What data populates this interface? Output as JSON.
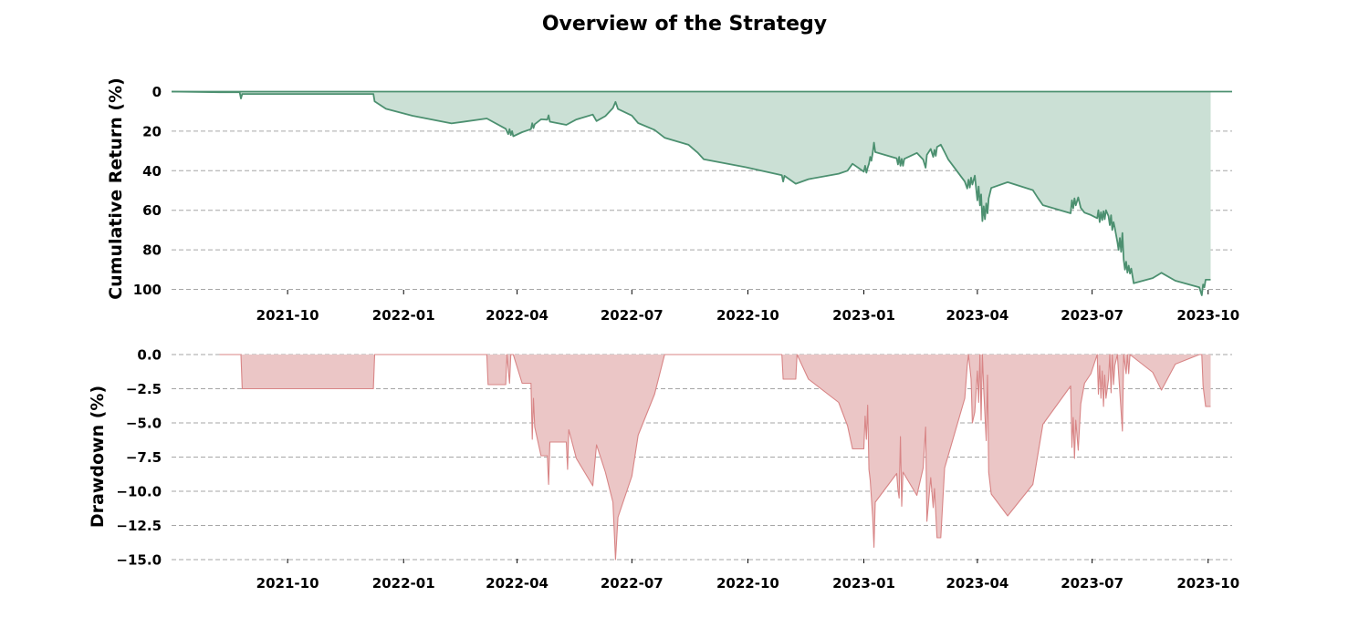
{
  "chart_data": {
    "title": "Overview of the Strategy",
    "x_range": [
      "2021-07-01",
      "2023-10-20"
    ],
    "x_ticks": [
      "2021-10",
      "2022-01",
      "2022-04",
      "2022-07",
      "2022-10",
      "2023-01",
      "2023-04",
      "2023-07",
      "2023-10"
    ],
    "grid": "horizontal dashed",
    "panels": [
      {
        "type": "area",
        "ylabel": "Cumulative Return (%)",
        "ylim": [
          0,
          105
        ],
        "y_ticks": [
          0,
          20,
          40,
          60,
          80,
          100
        ],
        "line_color": "#4c9070",
        "fill_color": "#cbe0d5",
        "points": [
          [
            "2021-07-01",
            0
          ],
          [
            "2021-08-08",
            0.3
          ],
          [
            "2021-08-24",
            0.3
          ],
          [
            "2021-08-25",
            3.5
          ],
          [
            "2021-08-26",
            1.2
          ],
          [
            "2021-12-08",
            1.2
          ],
          [
            "2021-12-09",
            5
          ],
          [
            "2021-12-18",
            8.7
          ],
          [
            "2022-01-08",
            12.2
          ],
          [
            "2022-02-08",
            16.1
          ],
          [
            "2022-03-08",
            13.6
          ],
          [
            "2022-03-23",
            18.8
          ],
          [
            "2022-03-25",
            21.5
          ],
          [
            "2022-03-26",
            19
          ],
          [
            "2022-03-27",
            22
          ],
          [
            "2022-03-28",
            20
          ],
          [
            "2022-03-29",
            22.6
          ],
          [
            "2022-04-05",
            20.5
          ],
          [
            "2022-04-12",
            19
          ],
          [
            "2022-04-13",
            16
          ],
          [
            "2022-04-14",
            18.5
          ],
          [
            "2022-04-15",
            16.5
          ],
          [
            "2022-04-20",
            14
          ],
          [
            "2022-04-25",
            14.2
          ],
          [
            "2022-04-26",
            12
          ],
          [
            "2022-04-27",
            15.2
          ],
          [
            "2022-05-10",
            16.8
          ],
          [
            "2022-05-18",
            14.1
          ],
          [
            "2022-05-31",
            11.6
          ],
          [
            "2022-06-03",
            14.9
          ],
          [
            "2022-06-10",
            12.4
          ],
          [
            "2022-06-16",
            8.3
          ],
          [
            "2022-06-18",
            5.2
          ],
          [
            "2022-06-20",
            8.8
          ],
          [
            "2022-07-01",
            12.1
          ],
          [
            "2022-07-06",
            15.9
          ],
          [
            "2022-07-19",
            19.4
          ],
          [
            "2022-07-27",
            23.3
          ],
          [
            "2022-08-15",
            26.9
          ],
          [
            "2022-08-22",
            30.8
          ],
          [
            "2022-08-27",
            34.2
          ],
          [
            "2022-09-29",
            38.2
          ],
          [
            "2022-10-28",
            42.3
          ],
          [
            "2022-10-29",
            45.5
          ],
          [
            "2022-10-30",
            42.6
          ],
          [
            "2022-11-08",
            46.6
          ],
          [
            "2022-11-18",
            44.3
          ],
          [
            "2022-12-12",
            41.5
          ],
          [
            "2022-12-19",
            40
          ],
          [
            "2022-12-23",
            36.5
          ],
          [
            "2023-01-01",
            40.5
          ],
          [
            "2023-01-02",
            37.5
          ],
          [
            "2023-01-03",
            41
          ],
          [
            "2023-01-04",
            38.5
          ],
          [
            "2023-01-05",
            36.5
          ],
          [
            "2023-01-06",
            33
          ],
          [
            "2023-01-07",
            35
          ],
          [
            "2023-01-08",
            31
          ],
          [
            "2023-01-09",
            25.8
          ],
          [
            "2023-01-10",
            30.6
          ],
          [
            "2023-01-27",
            33.8
          ],
          [
            "2023-01-28",
            36.8
          ],
          [
            "2023-01-29",
            33
          ],
          [
            "2023-01-30",
            37.5
          ],
          [
            "2023-01-31",
            34
          ],
          [
            "2023-02-01",
            37.5
          ],
          [
            "2023-02-02",
            34
          ],
          [
            "2023-02-12",
            31
          ],
          [
            "2023-02-17",
            34.4
          ],
          [
            "2023-02-19",
            38.5
          ],
          [
            "2023-02-20",
            32
          ],
          [
            "2023-02-23",
            29
          ],
          [
            "2023-02-25",
            33
          ],
          [
            "2023-02-26",
            29.5
          ],
          [
            "2023-02-27",
            32.5
          ],
          [
            "2023-02-28",
            28
          ],
          [
            "2023-03-03",
            26.8
          ],
          [
            "2023-03-06",
            30.6
          ],
          [
            "2023-03-09",
            34.4
          ],
          [
            "2023-03-22",
            45.5
          ],
          [
            "2023-03-24",
            49
          ],
          [
            "2023-03-25",
            44.5
          ],
          [
            "2023-03-26",
            48.5
          ],
          [
            "2023-03-27",
            43.5
          ],
          [
            "2023-03-28",
            47
          ],
          [
            "2023-03-30",
            42.5
          ],
          [
            "2023-04-01",
            55
          ],
          [
            "2023-04-02",
            48
          ],
          [
            "2023-04-03",
            57.5
          ],
          [
            "2023-04-04",
            52
          ],
          [
            "2023-04-05",
            65.5
          ],
          [
            "2023-04-06",
            58
          ],
          [
            "2023-04-07",
            64.5
          ],
          [
            "2023-04-08",
            56.5
          ],
          [
            "2023-04-09",
            61.5
          ],
          [
            "2023-04-10",
            54
          ],
          [
            "2023-04-12",
            48.7
          ],
          [
            "2023-04-25",
            45.8
          ],
          [
            "2023-05-15",
            49.8
          ],
          [
            "2023-05-19",
            53.8
          ],
          [
            "2023-05-23",
            57.4
          ],
          [
            "2023-06-14",
            61.5
          ],
          [
            "2023-06-15",
            55
          ],
          [
            "2023-06-16",
            59
          ],
          [
            "2023-06-17",
            54
          ],
          [
            "2023-06-18",
            57.5
          ],
          [
            "2023-06-20",
            53.5
          ],
          [
            "2023-06-22",
            58.8
          ],
          [
            "2023-06-25",
            61.2
          ],
          [
            "2023-06-30",
            62.4
          ],
          [
            "2023-07-05",
            64
          ],
          [
            "2023-07-06",
            60
          ],
          [
            "2023-07-07",
            66
          ],
          [
            "2023-07-08",
            61
          ],
          [
            "2023-07-09",
            65
          ],
          [
            "2023-07-10",
            60.5
          ],
          [
            "2023-07-11",
            64.5
          ],
          [
            "2023-07-12",
            60
          ],
          [
            "2023-07-14",
            63
          ],
          [
            "2023-07-15",
            67.5
          ],
          [
            "2023-07-16",
            62.5
          ],
          [
            "2023-07-17",
            70
          ],
          [
            "2023-07-18",
            66
          ],
          [
            "2023-07-19",
            69
          ],
          [
            "2023-07-21",
            76
          ],
          [
            "2023-07-22",
            80
          ],
          [
            "2023-07-23",
            74
          ],
          [
            "2023-07-24",
            81
          ],
          [
            "2023-07-25",
            71.5
          ],
          [
            "2023-07-26",
            85
          ],
          [
            "2023-07-27",
            90
          ],
          [
            "2023-07-28",
            86
          ],
          [
            "2023-07-29",
            91.5
          ],
          [
            "2023-07-30",
            88
          ],
          [
            "2023-07-31",
            92
          ],
          [
            "2023-08-01",
            89.5
          ],
          [
            "2023-08-03",
            96.9
          ],
          [
            "2023-08-18",
            94.3
          ],
          [
            "2023-08-25",
            91.6
          ],
          [
            "2023-09-05",
            95.6
          ],
          [
            "2023-09-24",
            99
          ],
          [
            "2023-09-26",
            103
          ],
          [
            "2023-09-27",
            97.5
          ],
          [
            "2023-09-28",
            99
          ],
          [
            "2023-09-29",
            95.1
          ],
          [
            "2023-10-03",
            95.1
          ]
        ]
      },
      {
        "type": "area",
        "ylabel": "Drawdown (%)",
        "ylim": [
          -15.2,
          0.2
        ],
        "y_ticks": [
          0.0,
          -2.5,
          -5.0,
          -7.5,
          -10.0,
          -12.5,
          -15.0
        ],
        "y_tick_labels": [
          "0.0",
          "−2.5",
          "−5.0",
          "−7.5",
          "−10.0",
          "−12.5",
          "−15.0"
        ],
        "line_color": "#d88586",
        "fill_color": "#ebc6c6",
        "points": [
          [
            "2021-08-08",
            0
          ],
          [
            "2021-08-25",
            0
          ],
          [
            "2021-08-26",
            -2.5
          ],
          [
            "2021-12-08",
            -2.5
          ],
          [
            "2021-12-09",
            0
          ],
          [
            "2022-03-08",
            0
          ],
          [
            "2022-03-09",
            -2.2
          ],
          [
            "2022-03-23",
            -2.2
          ],
          [
            "2022-03-24",
            0
          ],
          [
            "2022-03-26",
            -2.1
          ],
          [
            "2022-03-27",
            0
          ],
          [
            "2022-03-29",
            0
          ],
          [
            "2022-04-05",
            -2.1
          ],
          [
            "2022-04-12",
            -2.1
          ],
          [
            "2022-04-13",
            -6.2
          ],
          [
            "2022-04-14",
            -3.2
          ],
          [
            "2022-04-15",
            -5.3
          ],
          [
            "2022-04-20",
            -7.4
          ],
          [
            "2022-04-25",
            -7.4
          ],
          [
            "2022-04-26",
            -9.5
          ],
          [
            "2022-04-27",
            -6.4
          ],
          [
            "2022-05-10",
            -6.4
          ],
          [
            "2022-05-11",
            -8.4
          ],
          [
            "2022-05-12",
            -5.5
          ],
          [
            "2022-05-18",
            -7.6
          ],
          [
            "2022-05-31",
            -9.6
          ],
          [
            "2022-06-03",
            -6.6
          ],
          [
            "2022-06-10",
            -8.6
          ],
          [
            "2022-06-16",
            -10.8
          ],
          [
            "2022-06-18",
            -15
          ],
          [
            "2022-06-20",
            -11.9
          ],
          [
            "2022-07-01",
            -8.9
          ],
          [
            "2022-07-06",
            -5.9
          ],
          [
            "2022-07-19",
            -2.9
          ],
          [
            "2022-07-27",
            0
          ],
          [
            "2022-10-28",
            0
          ],
          [
            "2022-10-29",
            -1.8
          ],
          [
            "2022-11-08",
            -1.8
          ],
          [
            "2022-11-09",
            0
          ],
          [
            "2022-11-18",
            -1.8
          ],
          [
            "2022-12-12",
            -3.5
          ],
          [
            "2022-12-19",
            -5.2
          ],
          [
            "2022-12-23",
            -6.9
          ],
          [
            "2023-01-01",
            -6.9
          ],
          [
            "2023-01-02",
            -4.5
          ],
          [
            "2023-01-03",
            -6.2
          ],
          [
            "2023-01-04",
            -3.7
          ],
          [
            "2023-01-05",
            -8.4
          ],
          [
            "2023-01-06",
            -9.2
          ],
          [
            "2023-01-08",
            -11.9
          ],
          [
            "2023-01-09",
            -14.1
          ],
          [
            "2023-01-10",
            -10.8
          ],
          [
            "2023-01-27",
            -8.7
          ],
          [
            "2023-01-28",
            -9.9
          ],
          [
            "2023-01-29",
            -10.5
          ],
          [
            "2023-01-30",
            -6
          ],
          [
            "2023-01-31",
            -11.1
          ],
          [
            "2023-02-01",
            -8.6
          ],
          [
            "2023-02-12",
            -10.3
          ],
          [
            "2023-02-17",
            -8.3
          ],
          [
            "2023-02-19",
            -5.3
          ],
          [
            "2023-02-20",
            -12.2
          ],
          [
            "2023-02-23",
            -9
          ],
          [
            "2023-02-25",
            -11.2
          ],
          [
            "2023-02-26",
            -9.8
          ],
          [
            "2023-02-28",
            -13.4
          ],
          [
            "2023-03-03",
            -13.4
          ],
          [
            "2023-03-06",
            -8.3
          ],
          [
            "2023-03-22",
            -3.2
          ],
          [
            "2023-03-24",
            -0.8
          ],
          [
            "2023-03-25",
            0
          ],
          [
            "2023-03-27",
            -1.8
          ],
          [
            "2023-03-28",
            -5
          ],
          [
            "2023-03-30",
            -4.2
          ],
          [
            "2023-04-01",
            -1.2
          ],
          [
            "2023-04-02",
            -3.5
          ],
          [
            "2023-04-03",
            0
          ],
          [
            "2023-04-04",
            -4.8
          ],
          [
            "2023-04-05",
            0
          ],
          [
            "2023-04-06",
            -2.5
          ],
          [
            "2023-04-08",
            -6.3
          ],
          [
            "2023-04-09",
            -1.5
          ],
          [
            "2023-04-10",
            -8.6
          ],
          [
            "2023-04-12",
            -10.2
          ],
          [
            "2023-04-25",
            -11.8
          ],
          [
            "2023-05-15",
            -9.5
          ],
          [
            "2023-05-19",
            -7.3
          ],
          [
            "2023-05-23",
            -5.1
          ],
          [
            "2023-06-14",
            -2.3
          ],
          [
            "2023-06-15",
            -6.8
          ],
          [
            "2023-06-16",
            -4.6
          ],
          [
            "2023-06-17",
            -7.6
          ],
          [
            "2023-06-18",
            -4.8
          ],
          [
            "2023-06-20",
            -7
          ],
          [
            "2023-06-22",
            -3.6
          ],
          [
            "2023-06-25",
            -2.1
          ],
          [
            "2023-06-30",
            -1.4
          ],
          [
            "2023-07-05",
            0
          ],
          [
            "2023-07-06",
            -2.9
          ],
          [
            "2023-07-07",
            -0.8
          ],
          [
            "2023-07-08",
            -3.2
          ],
          [
            "2023-07-09",
            -1.2
          ],
          [
            "2023-07-10",
            -3.8
          ],
          [
            "2023-07-11",
            -1.5
          ],
          [
            "2023-07-12",
            -3.2
          ],
          [
            "2023-07-14",
            -1.8
          ],
          [
            "2023-07-15",
            0
          ],
          [
            "2023-07-16",
            -2.8
          ],
          [
            "2023-07-17",
            0
          ],
          [
            "2023-07-18",
            -2.2
          ],
          [
            "2023-07-19",
            -0.8
          ],
          [
            "2023-07-21",
            0
          ],
          [
            "2023-07-25",
            -5.6
          ],
          [
            "2023-07-26",
            0
          ],
          [
            "2023-07-28",
            -1.4
          ],
          [
            "2023-07-29",
            0
          ],
          [
            "2023-07-30",
            -1.4
          ],
          [
            "2023-07-31",
            0
          ],
          [
            "2023-08-18",
            -1.3
          ],
          [
            "2023-08-25",
            -2.6
          ],
          [
            "2023-09-05",
            -0.7
          ],
          [
            "2023-09-24",
            0
          ],
          [
            "2023-09-26",
            0
          ],
          [
            "2023-09-27",
            -2.3
          ],
          [
            "2023-09-29",
            -3.8
          ],
          [
            "2023-10-03",
            -3.8
          ]
        ]
      }
    ]
  }
}
